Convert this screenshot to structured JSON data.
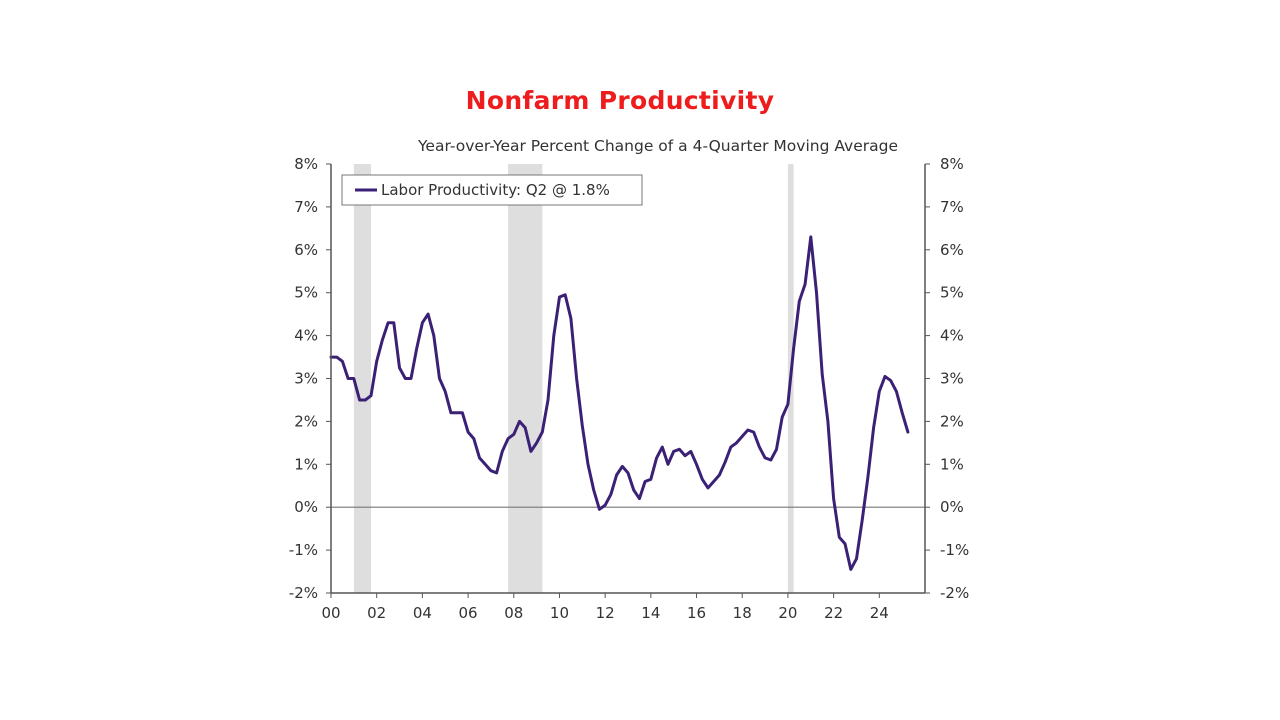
{
  "slide_title": "Nonfarm Productivity",
  "chart_data": {
    "type": "line",
    "title": "Nonfarm Productivity",
    "subtitle": "Year-over-Year Percent Change of a 4-Quarter Moving Average",
    "xlabel": "",
    "ylabel": "",
    "x_range": [
      2000,
      2026
    ],
    "ylim": [
      -2,
      8
    ],
    "y_ticks": [
      8,
      7,
      6,
      5,
      4,
      3,
      2,
      1,
      0,
      -1,
      -2
    ],
    "y_tick_labels": [
      "8%",
      "7%",
      "6%",
      "5%",
      "4%",
      "3%",
      "2%",
      "1%",
      "0%",
      "-1%",
      "-2%"
    ],
    "x_tick_labels": [
      "00",
      "02",
      "04",
      "06",
      "08",
      "10",
      "12",
      "14",
      "16",
      "18",
      "20",
      "22",
      "24"
    ],
    "x_tick_years": [
      2000,
      2002,
      2004,
      2006,
      2008,
      2010,
      2012,
      2014,
      2016,
      2018,
      2020,
      2022,
      2024
    ],
    "legend_position": "top-left",
    "recessions": [
      [
        2001.0,
        2001.75
      ],
      [
        2007.75,
        2009.25
      ],
      [
        2020.0,
        2020.25
      ]
    ],
    "colors": {
      "series": "#3b2176",
      "recession": "#dedede",
      "axis": "#555555",
      "title": "#ee1c1c"
    },
    "series": [
      {
        "name": "Labor Productivity: Q2 @ 1.8%",
        "x": [
          2000.0,
          2000.25,
          2000.5,
          2000.75,
          2001.0,
          2001.25,
          2001.5,
          2001.75,
          2002.0,
          2002.25,
          2002.5,
          2002.75,
          2003.0,
          2003.25,
          2003.5,
          2003.75,
          2004.0,
          2004.25,
          2004.5,
          2004.75,
          2005.0,
          2005.25,
          2005.5,
          2005.75,
          2006.0,
          2006.25,
          2006.5,
          2006.75,
          2007.0,
          2007.25,
          2007.5,
          2007.75,
          2008.0,
          2008.25,
          2008.5,
          2008.75,
          2009.0,
          2009.25,
          2009.5,
          2009.75,
          2010.0,
          2010.25,
          2010.5,
          2010.75,
          2011.0,
          2011.25,
          2011.5,
          2011.75,
          2012.0,
          2012.25,
          2012.5,
          2012.75,
          2013.0,
          2013.25,
          2013.5,
          2013.75,
          2014.0,
          2014.25,
          2014.5,
          2014.75,
          2015.0,
          2015.25,
          2015.5,
          2015.75,
          2016.0,
          2016.25,
          2016.5,
          2016.75,
          2017.0,
          2017.25,
          2017.5,
          2017.75,
          2018.0,
          2018.25,
          2018.5,
          2018.75,
          2019.0,
          2019.25,
          2019.5,
          2019.75,
          2020.0,
          2020.25,
          2020.5,
          2020.75,
          2021.0,
          2021.25,
          2021.5,
          2021.75,
          2022.0,
          2022.25,
          2022.5,
          2022.75,
          2023.0,
          2023.25,
          2023.5,
          2023.75,
          2024.0,
          2024.25,
          2024.5,
          2024.75,
          2025.0,
          2025.25
        ],
        "values": [
          3.5,
          3.5,
          3.4,
          3.0,
          3.0,
          2.5,
          2.5,
          2.6,
          3.4,
          3.9,
          4.3,
          4.3,
          3.25,
          3.0,
          3.0,
          3.7,
          4.3,
          4.5,
          4.0,
          3.0,
          2.7,
          2.2,
          2.2,
          2.2,
          1.75,
          1.6,
          1.15,
          1.0,
          0.85,
          0.8,
          1.3,
          1.6,
          1.7,
          2.0,
          1.85,
          1.3,
          1.5,
          1.75,
          2.5,
          4.0,
          4.9,
          4.95,
          4.4,
          3.0,
          1.9,
          1.0,
          0.4,
          -0.05,
          0.05,
          0.3,
          0.75,
          0.95,
          0.8,
          0.4,
          0.2,
          0.6,
          0.65,
          1.15,
          1.4,
          1.0,
          1.3,
          1.35,
          1.2,
          1.3,
          1.0,
          0.65,
          0.45,
          0.6,
          0.75,
          1.05,
          1.4,
          1.5,
          1.65,
          1.8,
          1.75,
          1.4,
          1.15,
          1.1,
          1.35,
          2.1,
          2.4,
          3.7,
          4.8,
          5.2,
          6.3,
          5.0,
          3.1,
          2.0,
          0.2,
          -0.7,
          -0.85,
          -1.45,
          -1.2,
          -0.3,
          0.7,
          1.85,
          2.7,
          3.05,
          2.95,
          2.7,
          2.2,
          1.75
        ]
      }
    ]
  }
}
